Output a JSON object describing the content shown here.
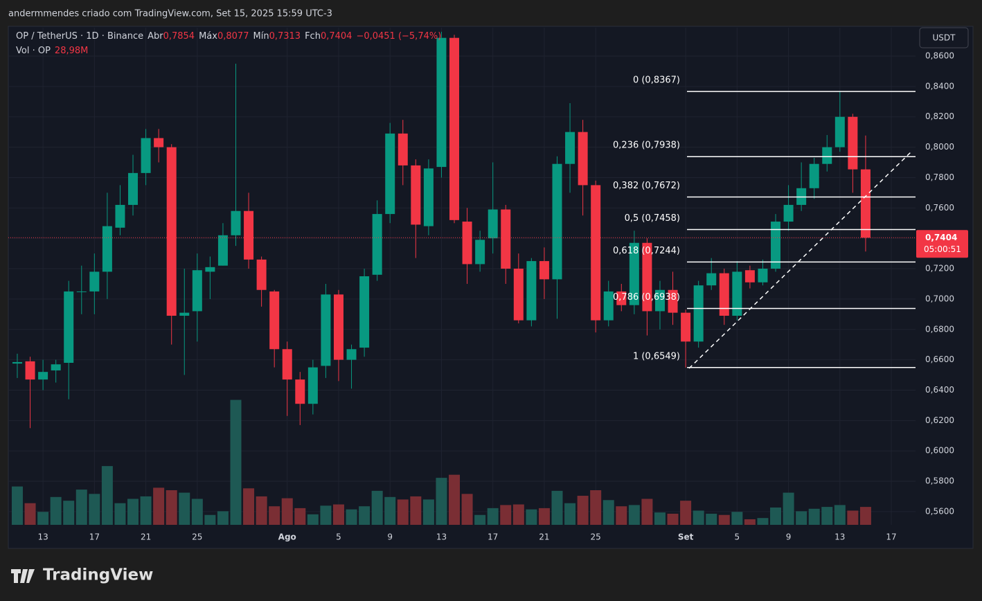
{
  "top_caption": "andermmendes criado com TradingView.com, Set 15, 2025 15:59 UTC-3",
  "logo": "TradingView",
  "chart_data": {
    "type": "candlestick",
    "title": "OP / TetherUS · 1D · Binance",
    "legend": [
      {
        "key": "Abr",
        "value": "0,7854"
      },
      {
        "key": "Máx",
        "value": "0,8077"
      },
      {
        "key": "Mín",
        "value": "0,7313"
      },
      {
        "key": "Fch",
        "value": "0,7404"
      }
    ],
    "change": "−0,0451 (−5,74%)",
    "volume_title": "Vol · OP",
    "volume_label": "28,98M",
    "currency": "USDT",
    "last_price": {
      "value": 0.7404,
      "label": "0,7404"
    },
    "countdown": "05:00:51",
    "up_color": "#089981",
    "down_color": "#f23645",
    "volume_up_color": "#1e5954",
    "volume_down_color": "#7a2e34",
    "categories": [
      null,
      null,
      "13",
      null,
      null,
      null,
      "17",
      null,
      null,
      null,
      "21",
      null,
      null,
      null,
      "25",
      null,
      null,
      null,
      null,
      null,
      null,
      "Ago",
      null,
      null,
      null,
      "5",
      null,
      null,
      null,
      "9",
      null,
      null,
      null,
      "13",
      null,
      null,
      null,
      "17",
      null,
      null,
      null,
      "21",
      null,
      null,
      null,
      "25",
      null,
      null,
      null,
      null,
      null,
      null,
      "Set",
      null,
      null,
      null,
      "5",
      null,
      null,
      null,
      "9",
      null,
      null,
      null,
      "13",
      null,
      null,
      null,
      "17"
    ],
    "open": [
      0.6575,
      0.659,
      0.647,
      0.653,
      0.658,
      0.705,
      0.705,
      0.718,
      0.747,
      0.762,
      0.783,
      0.806,
      0.8,
      0.689,
      0.692,
      0.718,
      0.722,
      0.742,
      0.758,
      0.726,
      0.705,
      0.667,
      0.647,
      0.631,
      0.656,
      0.703,
      0.66,
      0.668,
      0.716,
      0.756,
      0.809,
      0.788,
      0.748,
      0.787,
      0.872,
      0.751,
      0.723,
      0.74,
      0.759,
      0.72,
      0.686,
      0.725,
      0.713,
      0.789,
      0.81,
      0.775,
      0.686,
      0.705,
      0.696,
      0.737,
      0.692,
      0.706,
      0.691,
      0.672,
      0.709,
      0.717,
      0.689,
      0.719,
      0.711,
      0.72,
      0.751,
      0.762,
      0.773,
      0.789,
      0.8,
      0.82,
      0.7854,
      null,
      null
    ],
    "high": [
      0.664,
      0.662,
      0.66,
      0.66,
      0.712,
      0.722,
      0.73,
      0.77,
      0.775,
      0.795,
      0.812,
      0.812,
      0.802,
      0.72,
      0.73,
      0.728,
      0.75,
      0.855,
      0.77,
      0.728,
      0.706,
      0.672,
      0.652,
      0.66,
      0.71,
      0.706,
      0.67,
      0.72,
      0.765,
      0.816,
      0.818,
      0.792,
      0.792,
      0.876,
      0.874,
      0.76,
      0.745,
      0.79,
      0.762,
      0.73,
      0.727,
      0.734,
      0.794,
      0.829,
      0.818,
      0.778,
      0.712,
      0.71,
      0.745,
      0.74,
      0.712,
      0.718,
      0.693,
      0.712,
      0.727,
      0.72,
      0.725,
      0.722,
      0.726,
      0.756,
      0.775,
      0.79,
      0.793,
      0.808,
      0.8367,
      0.822,
      0.8077,
      null,
      null
    ],
    "low": [
      0.648,
      0.615,
      0.64,
      0.645,
      0.634,
      0.69,
      0.69,
      0.7,
      0.742,
      0.755,
      0.775,
      0.79,
      0.67,
      0.65,
      0.672,
      0.7,
      0.722,
      0.735,
      0.72,
      0.695,
      0.655,
      0.623,
      0.617,
      0.624,
      0.648,
      0.646,
      0.641,
      0.662,
      0.712,
      0.75,
      0.775,
      0.727,
      0.742,
      0.78,
      0.75,
      0.71,
      0.718,
      0.73,
      0.71,
      0.684,
      0.682,
      0.7,
      0.687,
      0.77,
      0.755,
      0.678,
      0.682,
      0.692,
      0.69,
      0.676,
      0.68,
      0.683,
      0.6549,
      0.668,
      0.706,
      0.683,
      0.686,
      0.707,
      0.709,
      0.718,
      0.745,
      0.758,
      0.766,
      0.784,
      0.797,
      0.77,
      0.7313,
      null,
      null
    ],
    "close": [
      0.6585,
      0.647,
      0.652,
      0.657,
      0.705,
      0.705,
      0.718,
      0.748,
      0.762,
      0.783,
      0.806,
      0.8,
      0.689,
      0.691,
      0.719,
      0.721,
      0.742,
      0.758,
      0.726,
      0.706,
      0.667,
      0.647,
      0.631,
      0.655,
      0.703,
      0.66,
      0.667,
      0.715,
      0.756,
      0.809,
      0.788,
      0.749,
      0.786,
      0.872,
      0.752,
      0.723,
      0.739,
      0.759,
      0.72,
      0.686,
      0.725,
      0.713,
      0.789,
      0.81,
      0.775,
      0.686,
      0.705,
      0.696,
      0.737,
      0.692,
      0.706,
      0.691,
      0.672,
      0.709,
      0.717,
      0.689,
      0.718,
      0.711,
      0.72,
      0.751,
      0.762,
      0.773,
      0.789,
      0.8,
      0.82,
      0.7854,
      0.7404,
      null,
      null
    ],
    "volume": [
      62,
      35,
      21,
      45,
      39,
      57,
      50,
      95,
      35,
      42,
      46,
      60,
      56,
      52,
      42,
      16,
      22,
      202,
      59,
      46,
      30,
      43,
      27,
      17,
      31,
      33,
      25,
      30,
      55,
      45,
      41,
      46,
      41,
      76,
      81,
      50,
      16,
      27,
      32,
      33,
      25,
      27,
      55,
      35,
      47,
      56,
      40,
      30,
      32,
      42,
      20,
      18,
      39,
      23,
      18,
      16,
      21,
      9,
      11,
      28,
      52,
      22,
      26,
      29,
      32,
      23,
      28.98,
      null,
      null
    ],
    "volume_lim": [
      0,
      225
    ],
    "ylim": [
      0.5513,
      0.8787
    ],
    "yticks": [
      {
        "value": 0.56,
        "label": "0,5600"
      },
      {
        "value": 0.58,
        "label": "0,5800"
      },
      {
        "value": 0.6,
        "label": "0,6000"
      },
      {
        "value": 0.62,
        "label": "0,6200"
      },
      {
        "value": 0.64,
        "label": "0,6400"
      },
      {
        "value": 0.66,
        "label": "0,6600"
      },
      {
        "value": 0.68,
        "label": "0,6800"
      },
      {
        "value": 0.7,
        "label": "0,7000"
      },
      {
        "value": 0.72,
        "label": "0,7200"
      },
      {
        "value": 0.74,
        "label": "0,7400"
      },
      {
        "value": 0.76,
        "label": "0,7600"
      },
      {
        "value": 0.78,
        "label": "0,7800"
      },
      {
        "value": 0.8,
        "label": "0,8000"
      },
      {
        "value": 0.82,
        "label": "0,8200"
      },
      {
        "value": 0.84,
        "label": "0,8400"
      },
      {
        "value": 0.86,
        "label": "0,8600"
      }
    ],
    "grid": true,
    "fib_levels": [
      {
        "value": 0.8367,
        "label": "0 (0,8367)"
      },
      {
        "value": 0.7938,
        "label": "0,236 (0,7938)"
      },
      {
        "value": 0.7672,
        "label": "0,382 (0,7672)"
      },
      {
        "value": 0.7458,
        "label": "0,5 (0,7458)"
      },
      {
        "value": 0.7244,
        "label": "0,618 (0,7244)"
      },
      {
        "value": 0.6938,
        "label": "0,786 (0,6938)"
      },
      {
        "value": 0.6549,
        "label": "1 (0,6549)"
      }
    ]
  }
}
